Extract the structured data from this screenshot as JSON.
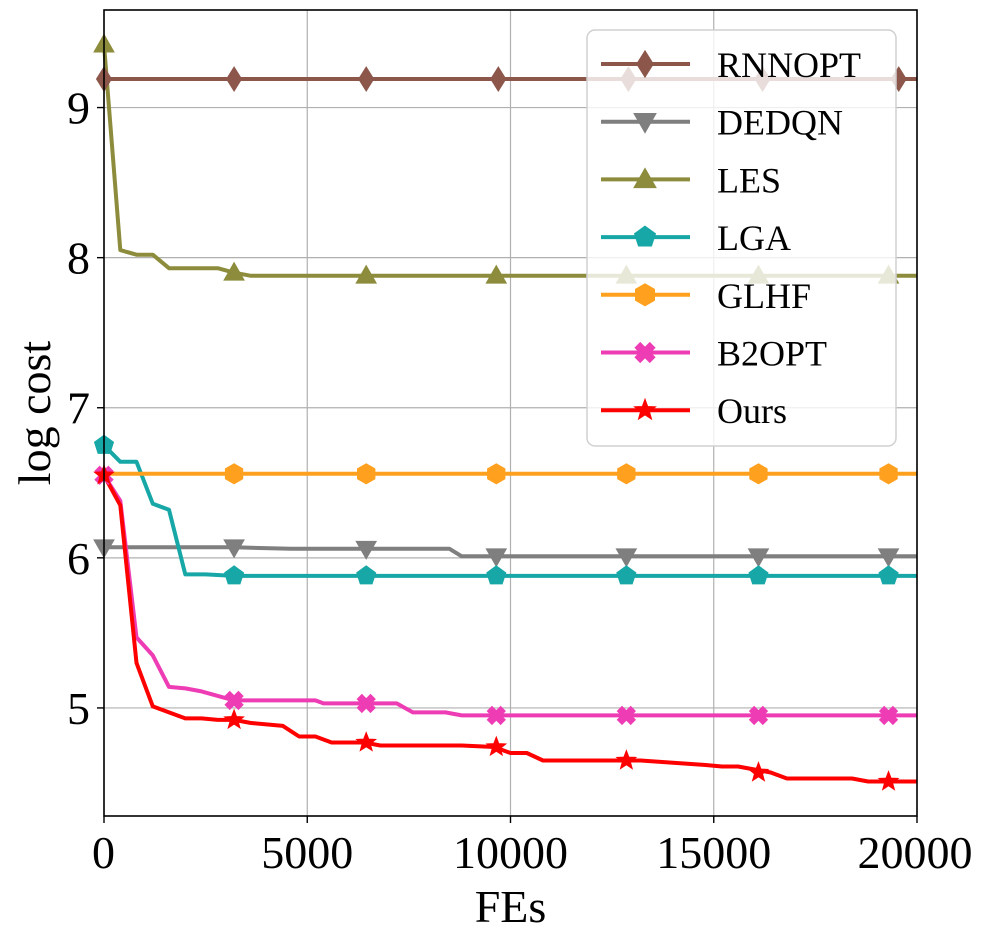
{
  "chart_data": {
    "type": "line",
    "title": "",
    "xlabel": "FEs",
    "ylabel": "log cost",
    "xlim": [
      0,
      20000
    ],
    "ylim": [
      4.28,
      9.65
    ],
    "xticks": [
      0,
      5000,
      10000,
      15000,
      20000
    ],
    "yticks": [
      5,
      6,
      7,
      8,
      9
    ],
    "grid": true,
    "legend_position": "top-right",
    "series": [
      {
        "name": "RNNOPT",
        "color": "#8c564b",
        "marker": "diamond",
        "x": [
          0,
          100,
          20000
        ],
        "y": [
          9.2,
          9.19,
          9.19
        ],
        "marker_x": [
          0,
          3200,
          6450,
          9700,
          12900,
          16200,
          19550
        ],
        "marker_y": [
          9.19,
          9.19,
          9.19,
          9.19,
          9.19,
          9.19,
          9.19
        ]
      },
      {
        "name": "DEDQN",
        "color": "#7f7f7f",
        "marker": "triangle-down",
        "x": [
          0,
          3200,
          4600,
          8500,
          8800,
          20000
        ],
        "y": [
          6.07,
          6.07,
          6.06,
          6.06,
          6.01,
          6.01
        ],
        "marker_x": [
          0,
          3200,
          6450,
          9650,
          12850,
          16100,
          19300
        ],
        "marker_y": [
          6.07,
          6.07,
          6.06,
          6.01,
          6.01,
          6.01,
          6.01
        ]
      },
      {
        "name": "LES",
        "color": "#8c8c3c",
        "marker": "triangle-up",
        "x": [
          0,
          400,
          800,
          1200,
          1600,
          2000,
          2800,
          3200,
          3600,
          20000
        ],
        "y": [
          9.42,
          8.05,
          8.02,
          8.02,
          7.93,
          7.93,
          7.93,
          7.9,
          7.88,
          7.88
        ],
        "marker_x": [
          0,
          3200,
          6450,
          9650,
          12850,
          16100,
          19300
        ],
        "marker_y": [
          9.42,
          7.9,
          7.88,
          7.88,
          7.88,
          7.88,
          7.88
        ]
      },
      {
        "name": "LGA",
        "color": "#17a7a7",
        "marker": "pentagon",
        "x": [
          0,
          400,
          800,
          1200,
          1600,
          2000,
          2500,
          3200,
          20000
        ],
        "y": [
          6.75,
          6.64,
          6.64,
          6.36,
          6.32,
          5.89,
          5.89,
          5.88,
          5.88
        ],
        "marker_x": [
          0,
          3200,
          6450,
          9650,
          12850,
          16100,
          19300
        ],
        "marker_y": [
          6.75,
          5.88,
          5.88,
          5.88,
          5.88,
          5.88,
          5.88
        ]
      },
      {
        "name": "GLHF",
        "color": "#ffa01e",
        "marker": "hexagon",
        "x": [
          0,
          20000
        ],
        "y": [
          6.56,
          6.56
        ],
        "marker_x": [
          3200,
          6450,
          9650,
          12850,
          16100,
          19300
        ],
        "marker_y": [
          6.56,
          6.56,
          6.56,
          6.56,
          6.56,
          6.56
        ]
      },
      {
        "name": "B2OPT",
        "color": "#ee3cb4",
        "marker": "x-filled",
        "x": [
          0,
          400,
          800,
          1200,
          1600,
          2000,
          2400,
          2800,
          3200,
          5200,
          5400,
          6400,
          7200,
          7600,
          8400,
          8800,
          20000
        ],
        "y": [
          6.55,
          6.38,
          5.47,
          5.35,
          5.14,
          5.13,
          5.11,
          5.08,
          5.05,
          5.05,
          5.03,
          5.03,
          5.03,
          4.97,
          4.97,
          4.95,
          4.95
        ],
        "marker_x": [
          0,
          3200,
          6450,
          9650,
          12850,
          16100,
          19300
        ],
        "marker_y": [
          6.55,
          5.05,
          5.03,
          4.95,
          4.95,
          4.95,
          4.95
        ]
      },
      {
        "name": "Ours",
        "color": "#ff0000",
        "marker": "star",
        "x": [
          0,
          400,
          800,
          1200,
          1600,
          2000,
          2400,
          2800,
          3200,
          3600,
          4400,
          4800,
          5200,
          5600,
          6400,
          6800,
          8800,
          9600,
          10000,
          10400,
          10800,
          13200,
          14800,
          15200,
          15600,
          16400,
          16800,
          18400,
          18800,
          20000
        ],
        "y": [
          6.55,
          6.35,
          5.3,
          5.01,
          4.97,
          4.93,
          4.93,
          4.92,
          4.92,
          4.9,
          4.88,
          4.81,
          4.81,
          4.77,
          4.77,
          4.75,
          4.75,
          4.74,
          4.7,
          4.7,
          4.65,
          4.65,
          4.62,
          4.61,
          4.61,
          4.57,
          4.53,
          4.53,
          4.51,
          4.51
        ],
        "marker_x": [
          0,
          3200,
          6450,
          9650,
          12850,
          16100,
          19300
        ],
        "marker_y": [
          6.55,
          4.92,
          4.77,
          4.74,
          4.65,
          4.57,
          4.51
        ]
      }
    ]
  }
}
